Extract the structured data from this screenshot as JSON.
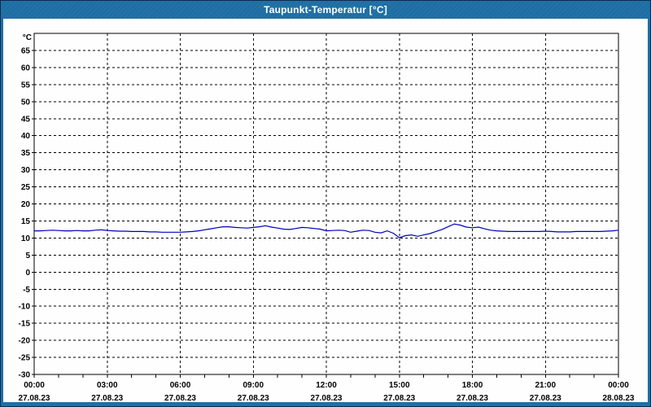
{
  "window": {
    "title": "Taupunkt-Temperatur [°C]"
  },
  "colors": {
    "titlebar_blue": "#1f70a6",
    "outer_border_dark": "#0d2c4c",
    "plot_background": "#fdfefd",
    "axis_and_grid": "#000000",
    "tick_text": "#000000",
    "series_line": "#0000bb"
  },
  "chart_data": {
    "type": "line",
    "title": "Taupunkt-Temperatur [°C]",
    "xlabel": "",
    "ylabel": "°C",
    "ylim": [
      -30,
      70
    ],
    "yticks": [
      65,
      60,
      55,
      50,
      45,
      40,
      35,
      30,
      25,
      20,
      15,
      10,
      5,
      0,
      -5,
      -10,
      -15,
      -20,
      -25,
      -30
    ],
    "x_hours_range": [
      0,
      24
    ],
    "minor_xtick_every_hours": 1,
    "grid": "dashed-black-on-white",
    "legend": "none",
    "xticks": [
      {
        "hour": 0,
        "time": "00:00",
        "date": "27.08.23"
      },
      {
        "hour": 3,
        "time": "03:00",
        "date": "27.08.23"
      },
      {
        "hour": 6,
        "time": "06:00",
        "date": "27.08.23"
      },
      {
        "hour": 9,
        "time": "09:00",
        "date": "27.08.23"
      },
      {
        "hour": 12,
        "time": "12:00",
        "date": "27.08.23"
      },
      {
        "hour": 15,
        "time": "15:00",
        "date": "27.08.23"
      },
      {
        "hour": 18,
        "time": "18:00",
        "date": "27.08.23"
      },
      {
        "hour": 21,
        "time": "21:00",
        "date": "27.08.23"
      },
      {
        "hour": 24,
        "time": "00:00",
        "date": "28.08.23"
      }
    ],
    "series": [
      {
        "name": "Taupunkt-Temperatur",
        "color": "#0000bb",
        "x_step_hours": 0.25,
        "x_hours": [
          0,
          0.25,
          0.5,
          0.75,
          1,
          1.25,
          1.5,
          1.75,
          2,
          2.25,
          2.5,
          2.75,
          3,
          3.25,
          3.5,
          3.75,
          4,
          4.25,
          4.5,
          4.75,
          5,
          5.25,
          5.5,
          5.75,
          6,
          6.25,
          6.5,
          6.75,
          7,
          7.25,
          7.5,
          7.75,
          8,
          8.25,
          8.5,
          8.75,
          9,
          9.25,
          9.5,
          9.75,
          10,
          10.25,
          10.5,
          10.75,
          11,
          11.25,
          11.5,
          11.75,
          12,
          12.25,
          12.5,
          12.75,
          13,
          13.25,
          13.5,
          13.75,
          14,
          14.25,
          14.5,
          14.75,
          15,
          15.25,
          15.5,
          15.75,
          16,
          16.25,
          16.5,
          16.75,
          17,
          17.25,
          17.5,
          17.75,
          18,
          18.25,
          18.5,
          18.75,
          19,
          19.25,
          19.5,
          19.75,
          20,
          20.25,
          20.5,
          20.75,
          21,
          21.25,
          21.5,
          21.75,
          22,
          22.25,
          22.5,
          22.75,
          23,
          23.25,
          23.5,
          23.75,
          24
        ],
        "values": [
          12.1,
          12.1,
          12.2,
          12.3,
          12.2,
          12.1,
          12.1,
          12.2,
          12.1,
          12.1,
          12.3,
          12.4,
          12.2,
          12.1,
          12.0,
          12.0,
          11.9,
          11.9,
          11.9,
          11.8,
          11.8,
          11.7,
          11.7,
          11.7,
          11.7,
          11.8,
          11.9,
          12.1,
          12.4,
          12.7,
          13.0,
          13.3,
          13.3,
          13.1,
          13.0,
          12.9,
          13.1,
          13.3,
          13.6,
          13.2,
          12.9,
          12.6,
          12.5,
          12.8,
          13.1,
          13.0,
          12.8,
          12.6,
          12.1,
          12.2,
          12.3,
          12.2,
          11.7,
          12.0,
          12.3,
          12.2,
          11.7,
          11.5,
          12.1,
          11.4,
          10.1,
          10.7,
          10.9,
          10.5,
          10.9,
          11.3,
          11.9,
          12.5,
          13.3,
          14.1,
          13.8,
          13.2,
          13.0,
          13.2,
          12.7,
          12.3,
          12.1,
          12.0,
          11.9,
          11.9,
          11.9,
          11.9,
          11.9,
          11.9,
          12.0,
          11.9,
          11.8,
          11.8,
          11.8,
          11.9,
          11.9,
          11.9,
          11.9,
          11.9,
          12.0,
          12.1,
          12.3
        ]
      }
    ]
  }
}
